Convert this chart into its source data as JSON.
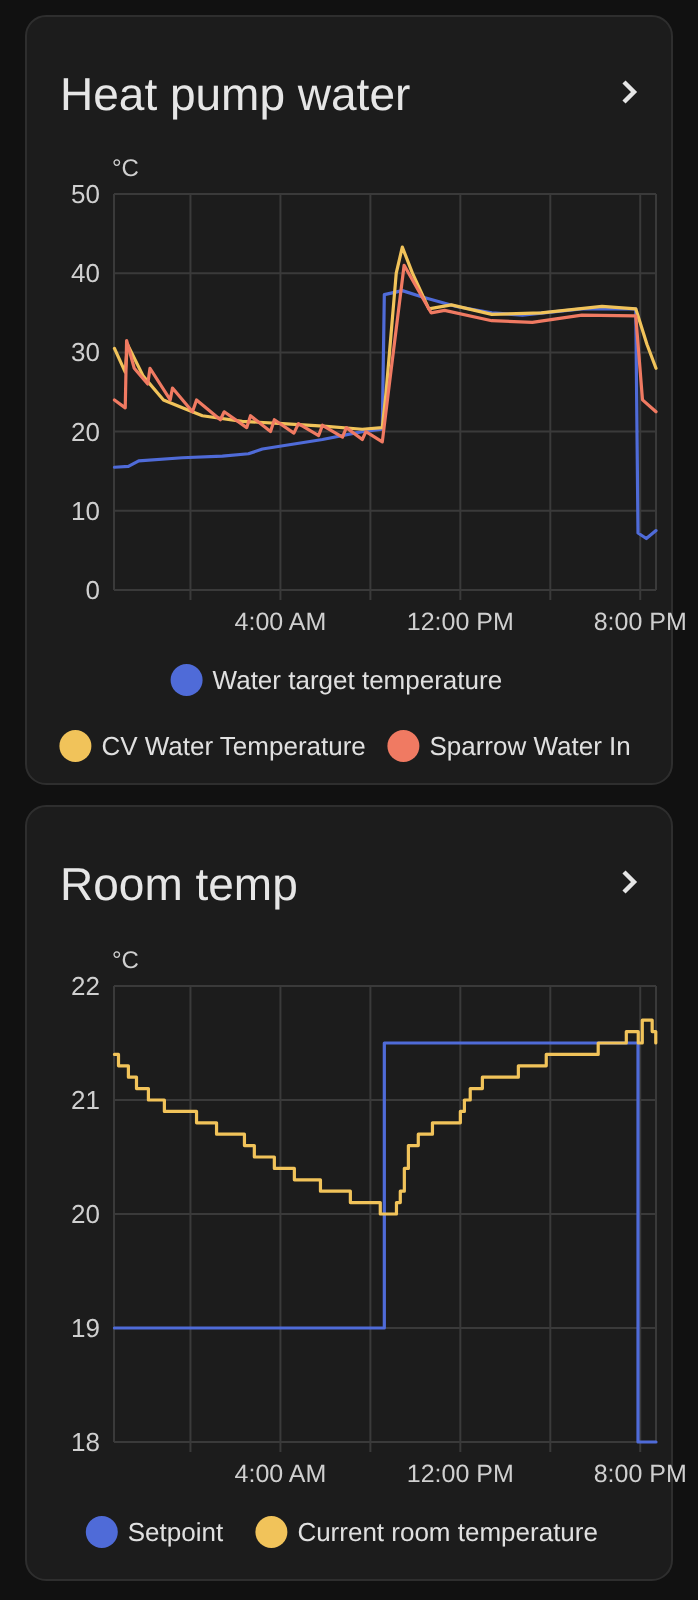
{
  "chart_data": [
    {
      "type": "line",
      "title": "Heat pump water",
      "ylabel": "°C",
      "xlim": [
        -3.4,
        20.7
      ],
      "ylim": [
        0,
        50
      ],
      "yticks": [
        0,
        10,
        20,
        30,
        40,
        50
      ],
      "xticks": [
        {
          "value": 0,
          "label": null
        },
        {
          "value": 4,
          "label": "4:00 AM"
        },
        {
          "value": 8,
          "label": null
        },
        {
          "value": 12,
          "label": "12:00 PM"
        },
        {
          "value": 16,
          "label": null
        },
        {
          "value": 20,
          "label": "8:00 PM"
        }
      ],
      "grid": true,
      "legend": "bottom",
      "marker": "none",
      "series": [
        {
          "name": "Water target temperature",
          "color": "#4f6bd8",
          "x": [
            -3.38,
            -2.76,
            -2.3,
            -0.36,
            1.42,
            2.58,
            3.2,
            5.87,
            7.64,
            8.53,
            8.62,
            9.42,
            10.31,
            11.82,
            13.4,
            14.76,
            17.4,
            19.8,
            19.9,
            20.27,
            20.7
          ],
          "values": [
            15.5,
            15.6,
            16.3,
            16.7,
            16.9,
            17.2,
            17.8,
            19,
            20,
            20.3,
            37.3,
            37.8,
            37,
            35.8,
            35,
            34.7,
            35.5,
            35.5,
            7.2,
            6.5,
            7.5
          ]
        },
        {
          "name": "CV Water Temperature",
          "color": "#f1c35a",
          "x": [
            -3.38,
            -2.9,
            -2.8,
            -2.1,
            -1.2,
            -0.36,
            0.53,
            2.3,
            4.1,
            5.9,
            7.64,
            8.53,
            8.7,
            9.15,
            9.42,
            9.87,
            10.6,
            11.6,
            13.4,
            15.6,
            18.3,
            19.8,
            20.3,
            20.7
          ],
          "values": [
            30.5,
            27.5,
            31,
            27,
            24,
            23,
            22,
            21.3,
            21,
            20.7,
            20.3,
            20.5,
            25,
            40,
            43.3,
            40,
            35.5,
            36,
            34.8,
            35,
            35.8,
            35.5,
            31,
            28
          ]
        },
        {
          "name": "Sparrow Water In",
          "color": "#f07a62",
          "x": [
            -3.38,
            -2.9,
            -2.84,
            -2.5,
            -1.9,
            -1.8,
            -0.9,
            -0.8,
            0.09,
            0.27,
            1.33,
            1.5,
            2.5,
            2.67,
            3.56,
            3.73,
            4.6,
            4.8,
            5.7,
            5.87,
            6.76,
            6.93,
            7.64,
            7.8,
            8.53,
            8.8,
            9.5,
            10.7,
            11.3,
            13.4,
            15.2,
            17.4,
            19.8,
            20.1,
            20.7
          ],
          "values": [
            24,
            23,
            31.5,
            28,
            26,
            28,
            24,
            25.5,
            22.5,
            24,
            21.5,
            22.5,
            20.5,
            22,
            20,
            21.5,
            19.8,
            21,
            19.5,
            20.8,
            19.3,
            20.5,
            19,
            20,
            18.7,
            25,
            41,
            35,
            35.3,
            34,
            33.8,
            34.7,
            34.6,
            24,
            22.5
          ]
        }
      ]
    },
    {
      "type": "step",
      "title": "Room temp",
      "ylabel": "°C",
      "xlim": [
        -3.4,
        20.7
      ],
      "ylim": [
        18,
        22
      ],
      "yticks": [
        18,
        19,
        20,
        21,
        22
      ],
      "xticks": [
        {
          "value": 0,
          "label": null
        },
        {
          "value": 4,
          "label": "4:00 AM"
        },
        {
          "value": 8,
          "label": null
        },
        {
          "value": 12,
          "label": "12:00 PM"
        },
        {
          "value": 16,
          "label": null
        },
        {
          "value": 20,
          "label": "8:00 PM"
        }
      ],
      "grid": true,
      "legend": "bottom",
      "marker": "none",
      "series": [
        {
          "name": "Setpoint",
          "color": "#4f6bd8",
          "x": [
            -3.38,
            8.62,
            19.9,
            20.7
          ],
          "values": [
            19,
            21.5,
            18,
            18
          ]
        },
        {
          "name": "Current room temperature",
          "color": "#f1c35a",
          "x": [
            -3.38,
            -3.2,
            -2.76,
            -2.4,
            -1.87,
            -1.16,
            0.27,
            1.16,
            2.4,
            2.84,
            3.73,
            4.62,
            5.78,
            7.11,
            8.44,
            9.16,
            9.33,
            9.51,
            9.69,
            10.13,
            10.76,
            12.0,
            12.18,
            12.44,
            12.98,
            14.58,
            15.82,
            18.13,
            19.38,
            19.91,
            20.09,
            20.53,
            20.69
          ],
          "values": [
            21.4,
            21.3,
            21.2,
            21.1,
            21,
            20.9,
            20.8,
            20.7,
            20.6,
            20.5,
            20.4,
            20.3,
            20.2,
            20.1,
            20,
            20.1,
            20.2,
            20.4,
            20.6,
            20.7,
            20.8,
            20.9,
            21,
            21.1,
            21.2,
            21.3,
            21.4,
            21.5,
            21.6,
            21.5,
            21.7,
            21.6,
            21.5
          ]
        }
      ]
    }
  ]
}
